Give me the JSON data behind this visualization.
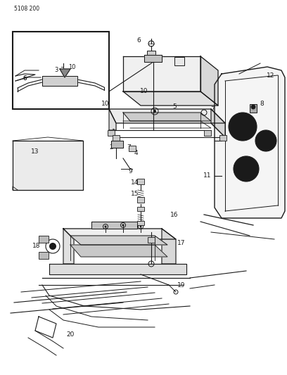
{
  "page_code": "5108 200",
  "bg": "#ffffff",
  "lc": "#1a1a1a",
  "figsize": [
    4.08,
    5.33
  ],
  "dpi": 100
}
